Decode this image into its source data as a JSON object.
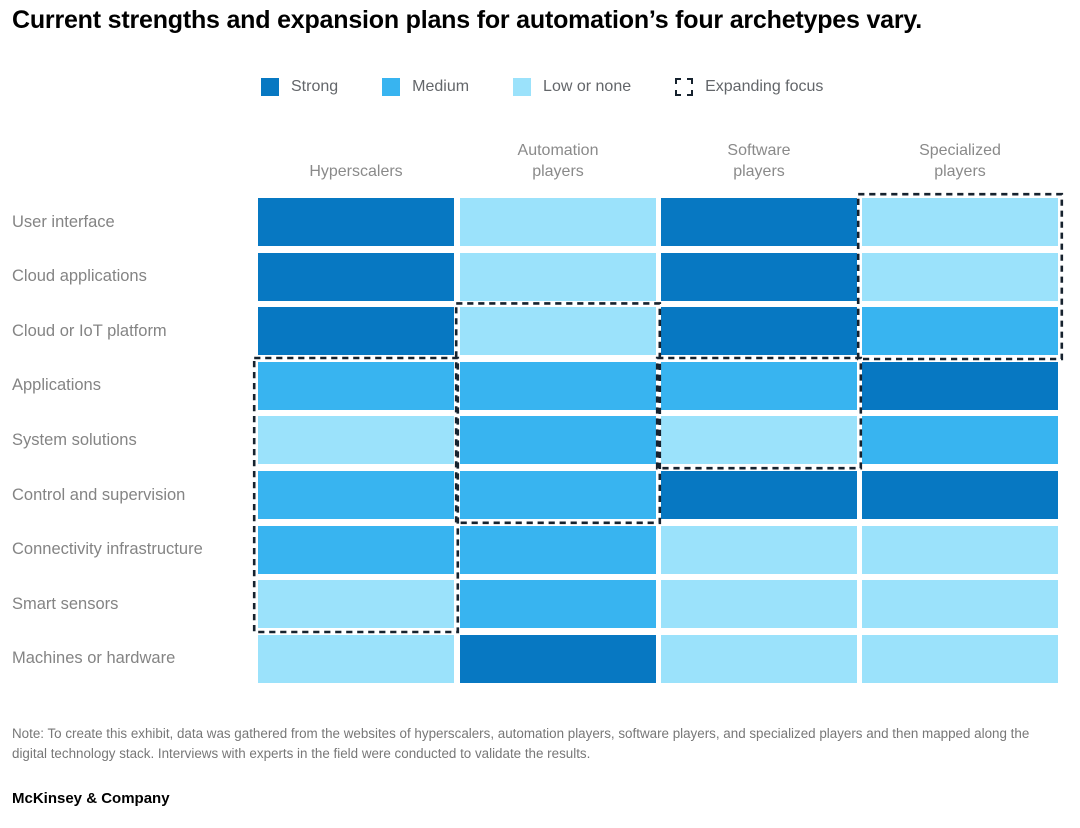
{
  "title": "Current strengths and expansion plans for automation’s four archetypes vary.",
  "legend": {
    "items": [
      {
        "label": "Strong",
        "type": "solid",
        "color": "#0778c2"
      },
      {
        "label": "Medium",
        "type": "solid",
        "color": "#38b4f0"
      },
      {
        "label": "Low or none",
        "type": "solid",
        "color": "#9be2fb"
      },
      {
        "label": "Expanding focus",
        "type": "dashed-outline",
        "color": "#16222e"
      }
    ]
  },
  "chart_data": {
    "type": "heatmap",
    "columns": [
      "Hyperscalers",
      "Automation players",
      "Software players",
      "Specialized players"
    ],
    "rows": [
      "User interface",
      "Cloud applications",
      "Cloud or IoT platform",
      "Applications",
      "System solutions",
      "Control and supervision",
      "Connectivity infrastructure",
      "Smart sensors",
      "Machines or hardware"
    ],
    "levels": {
      "strong": "#0778c2",
      "medium": "#38b4f0",
      "low": "#9be2fb"
    },
    "level_labels": {
      "strong": "Strong",
      "medium": "Medium",
      "low": "Low or none"
    },
    "values": [
      [
        "strong",
        "low",
        "strong",
        "low"
      ],
      [
        "strong",
        "low",
        "strong",
        "low"
      ],
      [
        "strong",
        "low",
        "strong",
        "medium"
      ],
      [
        "medium",
        "medium",
        "medium",
        "strong"
      ],
      [
        "low",
        "medium",
        "low",
        "medium"
      ],
      [
        "medium",
        "medium",
        "strong",
        "strong"
      ],
      [
        "medium",
        "medium",
        "low",
        "low"
      ],
      [
        "low",
        "medium",
        "low",
        "low"
      ],
      [
        "low",
        "strong",
        "low",
        "low"
      ]
    ],
    "expanding_focus": [
      {
        "column": "Hyperscalers",
        "from_row": "Applications",
        "to_row": "Smart sensors"
      },
      {
        "column": "Automation players",
        "from_row": "Cloud or IoT platform",
        "to_row": "Control and supervision"
      },
      {
        "column": "Software players",
        "from_row": "Applications",
        "to_row": "System solutions"
      },
      {
        "column": "Specialized players",
        "from_row": "User interface",
        "to_row": "Cloud or IoT platform"
      }
    ],
    "dash_color": "#16222e"
  },
  "note": "Note: To create this exhibit, data was gathered from the websites of hyperscalers, automation players, software players, and specialized players and then mapped along the digital technology stack. Interviews with experts in the field were conducted to validate the results.",
  "footer": "McKinsey & Company"
}
